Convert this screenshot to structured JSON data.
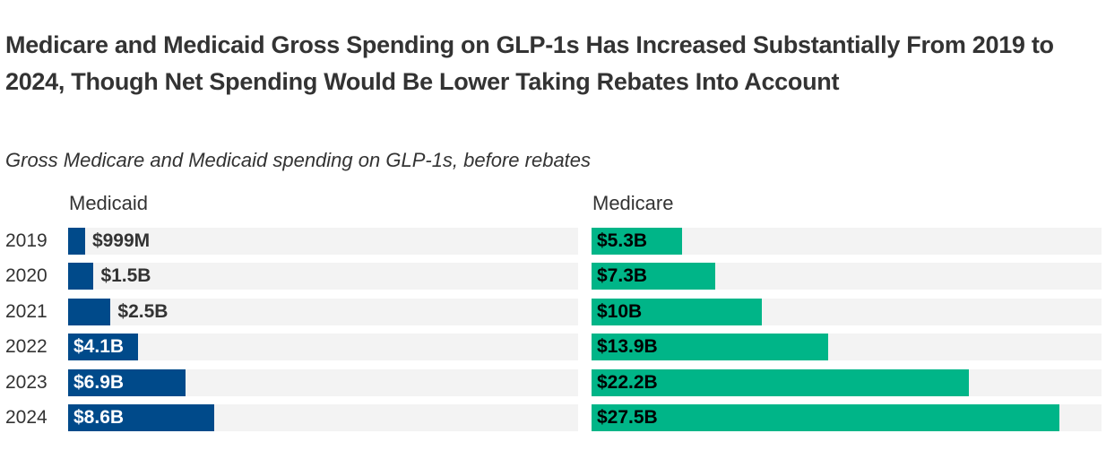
{
  "title": "Medicare and Medicaid Gross Spending on GLP-1s Has Increased Substantially From 2019 to 2024, Though Net Spending Would Be Lower Taking Rebates Into Account",
  "subtitle": "Gross Medicare and Medicaid spending on GLP-1s, before rebates",
  "colors": {
    "medicaid": "#004a8a",
    "medicare": "#00b588",
    "track": "#f3f3f3",
    "text": "#333333"
  },
  "chart_data": {
    "type": "bar",
    "orientation": "horizontal",
    "title": "Medicare and Medicaid Gross Spending on GLP-1s Has Increased Substantially From 2019 to 2024, Though Net Spending Would Be Lower Taking Rebates Into Account",
    "subtitle": "Gross Medicare and Medicaid spending on GLP-1s, before rebates",
    "categories": [
      "2019",
      "2020",
      "2021",
      "2022",
      "2023",
      "2024"
    ],
    "xlim": [
      0,
      30
    ],
    "unit": "billions USD",
    "series": [
      {
        "name": "Medicaid",
        "values": [
          0.999,
          1.5,
          2.5,
          4.1,
          6.9,
          8.6
        ],
        "labels": [
          "$999M",
          "$1.5B",
          "$2.5B",
          "$4.1B",
          "$6.9B",
          "$8.6B"
        ]
      },
      {
        "name": "Medicare",
        "values": [
          5.3,
          7.3,
          10,
          13.9,
          22.2,
          27.5
        ],
        "labels": [
          "$5.3B",
          "$7.3B",
          "$10B",
          "$13.9B",
          "$22.2B",
          "$27.5B"
        ]
      }
    ],
    "grid": false,
    "legend": "panel-headers"
  }
}
